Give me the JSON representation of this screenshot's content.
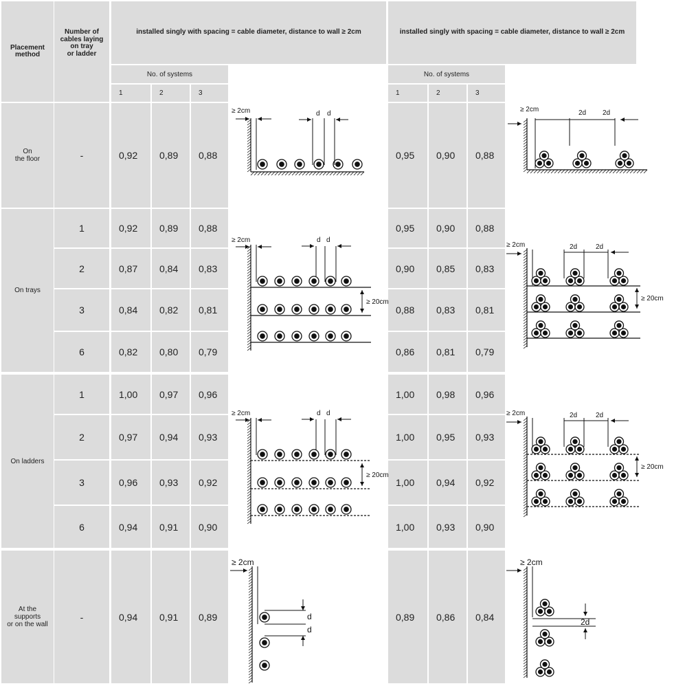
{
  "header": {
    "placement_method": "Placement\nmethod",
    "number_of_cables": "Number of\ncables laying\non tray\nor ladder",
    "left_group_title": "installed singly with spacing = cable diameter, distance to wall ≥ 2cm",
    "right_group_title": "installed singly with spacing = cable diameter, distance to wall ≥ 2cm",
    "no_of_systems": "No. of systems",
    "system_numbers": [
      "1",
      "2",
      "3"
    ]
  },
  "sections": [
    {
      "label": "On\nthe floor",
      "rows": [
        {
          "cables": "-",
          "left": [
            "0,92",
            "0,89",
            "0,88"
          ],
          "right": [
            "0,95",
            "0,90",
            "0,88"
          ]
        }
      ]
    },
    {
      "label": "On trays",
      "rows": [
        {
          "cables": "1",
          "left": [
            "0,92",
            "0,89",
            "0,88"
          ],
          "right": [
            "0,95",
            "0,90",
            "0,88"
          ]
        },
        {
          "cables": "2",
          "left": [
            "0,87",
            "0,84",
            "0,83"
          ],
          "right": [
            "0,90",
            "0,85",
            "0,83"
          ]
        },
        {
          "cables": "3",
          "left": [
            "0,84",
            "0,82",
            "0,81"
          ],
          "right": [
            "0,88",
            "0,83",
            "0,81"
          ]
        },
        {
          "cables": "6",
          "left": [
            "0,82",
            "0,80",
            "0,79"
          ],
          "right": [
            "0,86",
            "0,81",
            "0,79"
          ]
        }
      ]
    },
    {
      "label": "On ladders",
      "rows": [
        {
          "cables": "1",
          "left": [
            "1,00",
            "0,97",
            "0,96"
          ],
          "right": [
            "1,00",
            "0,98",
            "0,96"
          ]
        },
        {
          "cables": "2",
          "left": [
            "0,97",
            "0,94",
            "0,93"
          ],
          "right": [
            "1,00",
            "0,95",
            "0,93"
          ]
        },
        {
          "cables": "3",
          "left": [
            "0,96",
            "0,93",
            "0,92"
          ],
          "right": [
            "1,00",
            "0,94",
            "0,92"
          ]
        },
        {
          "cables": "6",
          "left": [
            "0,94",
            "0,91",
            "0,90"
          ],
          "right": [
            "1,00",
            "0,93",
            "0,90"
          ]
        }
      ]
    },
    {
      "label": "At the\nsupports\nor on the wall",
      "rows": [
        {
          "cables": "-",
          "left": [
            "0,94",
            "0,91",
            "0,89"
          ],
          "right": [
            "0,89",
            "0,86",
            "0,84"
          ]
        }
      ]
    }
  ],
  "diagram_labels": {
    "wall_gap": "≥ 2cm",
    "d": "d",
    "two_d": "2d",
    "layer_gap": "≥ 20cm"
  }
}
